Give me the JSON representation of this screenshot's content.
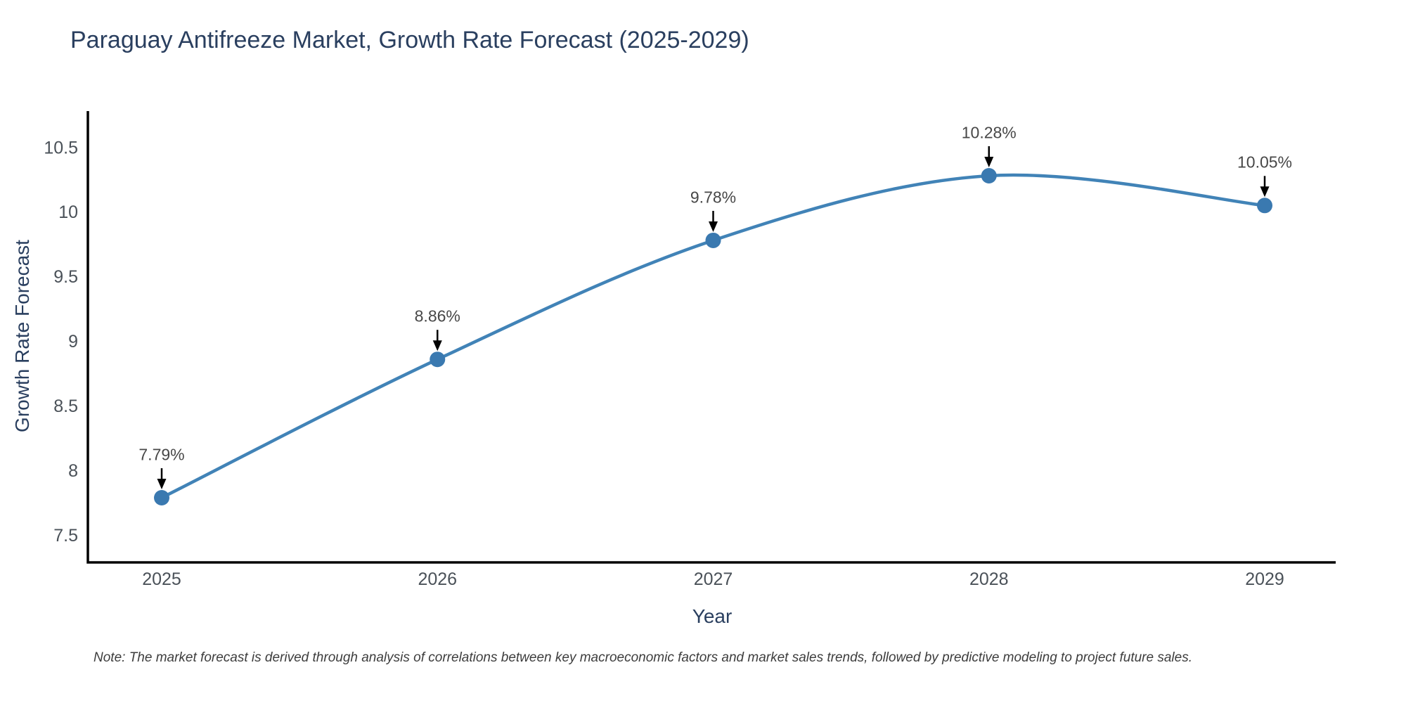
{
  "chart_data": {
    "type": "line",
    "title": "Paraguay Antifreeze Market, Growth Rate Forecast (2025-2029)",
    "xlabel": "Year",
    "ylabel": "Growth Rate Forecast",
    "categories": [
      "2025",
      "2026",
      "2027",
      "2028",
      "2029"
    ],
    "series": [
      {
        "name": "Growth Rate Forecast",
        "values": [
          7.79,
          8.86,
          9.78,
          10.28,
          10.05
        ]
      }
    ],
    "point_labels": [
      "7.79%",
      "8.86%",
      "9.78%",
      "10.28%",
      "10.05%"
    ],
    "ytick_labels": [
      "7.5",
      "8",
      "8.5",
      "9",
      "9.5",
      "10",
      "10.5"
    ],
    "ytick_values": [
      7.5,
      8,
      8.5,
      9,
      9.5,
      10,
      10.5
    ],
    "ylim": [
      7.29,
      10.78
    ],
    "curve": "spline",
    "grid": false,
    "legend": "none",
    "colors": {
      "line": "#4183b7",
      "marker": "#3a79b0",
      "axis": "#000000",
      "arrow": "#000000",
      "title_text": "#2a3f5f",
      "tick_text": "#4a5158",
      "annotation_text": "#474747",
      "note_text": "#3d3d3d",
      "background": "#ffffff"
    },
    "note": "Note: The market forecast is derived through analysis of correlations between key macroeconomic factors and market sales trends, followed by predictive modeling to project future sales."
  }
}
